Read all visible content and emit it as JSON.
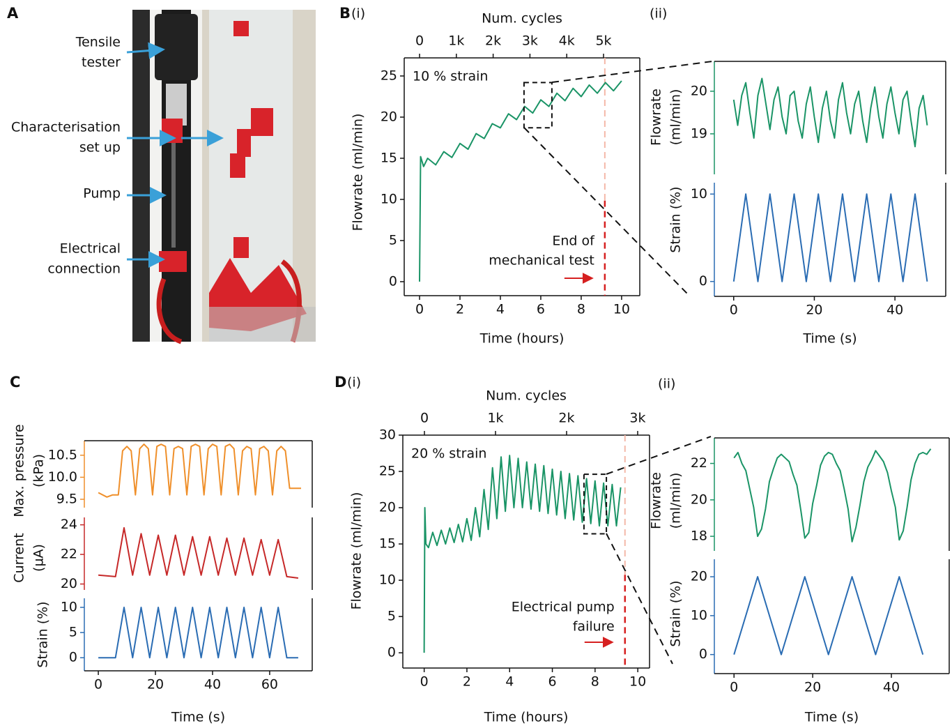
{
  "panel_labels": {
    "a": "A",
    "b": "B",
    "b_i": "(i)",
    "b_ii": "(ii)",
    "c": "C",
    "d": "D",
    "d_i": "(i)",
    "d_ii": "(ii)"
  },
  "photo_labels": [
    [
      "Tensile",
      "tester"
    ],
    [
      "Characterisation",
      "set up"
    ],
    [
      "Pump"
    ],
    [
      "Electrical",
      "connection"
    ]
  ],
  "chart_data": [
    {
      "type": "line",
      "xlabel": "Time (hours)",
      "ylabel": "Flowrate (ml/min)",
      "x2label": "Num. cycles",
      "color": "#1a9466",
      "xlim": [
        -0.76,
        10.9
      ],
      "ylim": [
        -1.7,
        27.2
      ],
      "xticks": [
        0,
        2,
        4,
        6,
        8,
        10
      ],
      "yticks": [
        0,
        5,
        10,
        15,
        20,
        25
      ],
      "x2lim": [
        -417,
        5985
      ],
      "x2ticks": [
        0,
        {
          "value": 1000,
          "label": "1k"
        },
        {
          "value": 2000,
          "label": "2k"
        },
        {
          "value": 3000,
          "label": "3k"
        },
        {
          "value": 4000,
          "label": "4k"
        },
        {
          "value": 5000,
          "label": "5k"
        }
      ],
      "annotations": {
        "strain": "10 % strain",
        "end": [
          "End of",
          "mechanical test"
        ]
      },
      "end_line_x": 9.17,
      "highlight": {
        "x": [
          5.17,
          6.55
        ],
        "y": [
          18.7,
          24.2
        ]
      },
      "x": [
        0,
        0.05,
        0.2,
        0.4,
        0.8,
        1.2,
        1.6,
        2.0,
        2.4,
        2.8,
        3.2,
        3.6,
        4.0,
        4.4,
        4.8,
        5.2,
        5.6,
        6.0,
        6.4,
        6.8,
        7.2,
        7.6,
        8.0,
        8.4,
        8.8,
        9.2,
        9.6,
        10.0
      ],
      "values": [
        0,
        15.2,
        14.0,
        15.0,
        14.2,
        15.8,
        15.1,
        16.8,
        16.1,
        18.0,
        17.4,
        19.2,
        18.7,
        20.4,
        19.7,
        21.3,
        20.5,
        22.1,
        21.3,
        22.9,
        22.0,
        23.5,
        22.5,
        23.9,
        22.9,
        24.2,
        23.2,
        24.4
      ]
    },
    {
      "type": "line",
      "ylabel": [
        "Flowrate",
        "(ml/min)"
      ],
      "color": "#1a9466",
      "xlim": [
        -4.8,
        52.6
      ],
      "ylim": [
        18.05,
        20.7
      ],
      "yticks": [
        19,
        20
      ],
      "x": [
        0,
        1,
        2,
        3,
        4,
        5,
        6,
        7,
        8,
        9,
        10,
        11,
        12,
        13,
        14,
        15,
        16,
        17,
        18,
        19,
        20,
        21,
        22,
        23,
        24,
        25,
        26,
        27,
        28,
        29,
        30,
        31,
        32,
        33,
        34,
        35,
        36,
        37,
        38,
        39,
        40,
        41,
        42,
        43,
        44,
        45,
        46,
        47,
        48
      ],
      "values": [
        19.8,
        19.2,
        19.9,
        20.2,
        19.5,
        18.9,
        19.9,
        20.3,
        19.7,
        19.1,
        19.8,
        20.1,
        19.4,
        19.0,
        19.9,
        20.0,
        19.3,
        18.9,
        19.7,
        20.1,
        19.4,
        18.8,
        19.6,
        20.0,
        19.3,
        18.9,
        19.8,
        20.2,
        19.5,
        19.0,
        19.7,
        20.0,
        19.3,
        18.8,
        19.6,
        20.1,
        19.4,
        18.9,
        19.7,
        20.1,
        19.5,
        19.0,
        19.8,
        20.0,
        19.3,
        18.7,
        19.6,
        19.9,
        19.2
      ]
    },
    {
      "type": "line",
      "xlabel": "Time (s)",
      "ylabel": "Strain (%)",
      "color": "#2a6cb3",
      "xlim": [
        -4.8,
        52.6
      ],
      "ylim": [
        -1.7,
        11.3
      ],
      "xticks": [
        0,
        20,
        40
      ],
      "yticks": [
        0,
        10
      ],
      "x": [
        0,
        3,
        6,
        9,
        12,
        15,
        18,
        21,
        24,
        27,
        30,
        33,
        36,
        39,
        42,
        45,
        48
      ],
      "values": [
        0,
        10,
        0,
        10,
        0,
        10,
        0,
        10,
        0,
        10,
        0,
        10,
        0,
        10,
        0,
        10,
        0
      ]
    },
    {
      "type": "line",
      "ylabel": [
        "Max. pressure",
        "(kPa)"
      ],
      "color": "#ef8f2a",
      "xlim": [
        -4.9,
        74.9
      ],
      "ylim": [
        9.31,
        10.83
      ],
      "yticks": [
        9.5,
        {
          "value": 10,
          "label": "10.0"
        },
        10.5
      ],
      "x": [
        0,
        3,
        5,
        7,
        8.5,
        10,
        11.5,
        13,
        14.5,
        16,
        17.5,
        19,
        20.5,
        22,
        23.5,
        25,
        26.5,
        28,
        29.5,
        31,
        32.5,
        34,
        35.5,
        37,
        38.5,
        40,
        41.5,
        43,
        44.5,
        46,
        47.5,
        49,
        50.5,
        52,
        53.5,
        55,
        56.5,
        58,
        59.5,
        61,
        62.5,
        64,
        65.5,
        67,
        71
      ],
      "values": [
        9.65,
        9.55,
        9.6,
        9.6,
        10.6,
        10.7,
        10.6,
        9.6,
        10.65,
        10.75,
        10.65,
        9.6,
        10.7,
        10.75,
        10.7,
        9.6,
        10.65,
        10.7,
        10.65,
        9.6,
        10.7,
        10.75,
        10.7,
        9.6,
        10.65,
        10.75,
        10.7,
        9.6,
        10.7,
        10.75,
        10.65,
        9.6,
        10.6,
        10.7,
        10.65,
        9.6,
        10.65,
        10.7,
        10.6,
        9.6,
        10.6,
        10.7,
        10.6,
        9.75,
        9.75
      ]
    },
    {
      "type": "line",
      "ylabel": [
        "Current",
        "(µA)"
      ],
      "color": "#c62828",
      "xlim": [
        -4.9,
        74.9
      ],
      "ylim": [
        19.6,
        24.5
      ],
      "yticks": [
        20,
        22,
        24
      ],
      "x": [
        0,
        6,
        9,
        12,
        15,
        18,
        21,
        24,
        27,
        30,
        33,
        36,
        39,
        42,
        45,
        48,
        51,
        54,
        57,
        60,
        63,
        66,
        70
      ],
      "values": [
        20.6,
        20.5,
        23.8,
        20.6,
        23.4,
        20.6,
        23.3,
        20.6,
        23.3,
        20.6,
        23.2,
        20.6,
        23.2,
        20.6,
        23.1,
        20.6,
        23.1,
        20.6,
        23.0,
        20.6,
        23.0,
        20.5,
        20.4
      ]
    },
    {
      "type": "line",
      "xlabel": "Time (s)",
      "ylabel": "Strain (%)",
      "color": "#2a6cb3",
      "xlim": [
        -4.9,
        74.9
      ],
      "ylim": [
        -2.6,
        11.8
      ],
      "xticks": [
        0,
        20,
        40,
        60
      ],
      "yticks": [
        0,
        5,
        10
      ],
      "x": [
        0,
        6,
        9,
        12,
        15,
        18,
        21,
        24,
        27,
        30,
        33,
        36,
        39,
        42,
        45,
        48,
        51,
        54,
        57,
        60,
        63,
        66,
        70
      ],
      "values": [
        0,
        0,
        10,
        0,
        10,
        0,
        10,
        0,
        10,
        0,
        10,
        0,
        10,
        0,
        10,
        0,
        10,
        0,
        10,
        0,
        10,
        0,
        0
      ]
    },
    {
      "type": "line",
      "xlabel": "Time (hours)",
      "ylabel": "Flowrate (ml/min)",
      "x2label": "Num. cycles",
      "color": "#1a9466",
      "xlim": [
        -1.0,
        10.55
      ],
      "ylim": [
        -2.1,
        30
      ],
      "xticks": [
        0,
        2,
        4,
        6,
        8,
        10
      ],
      "yticks": [
        0,
        5,
        10,
        15,
        20,
        25,
        30
      ],
      "x2lim": [
        -304,
        3167
      ],
      "x2ticks": [
        0,
        {
          "value": 1000,
          "label": "1k"
        },
        {
          "value": 2000,
          "label": "2k"
        },
        {
          "value": 3000,
          "label": "3k"
        }
      ],
      "annotations": {
        "strain": "20 % strain",
        "end": [
          "Electrical pump",
          "failure"
        ]
      },
      "end_line_x": 9.4,
      "highlight": {
        "x": [
          7.48,
          8.53
        ],
        "y": [
          16.4,
          24.6
        ]
      },
      "x": [
        0,
        0.03,
        0.08,
        0.2,
        0.4,
        0.6,
        0.8,
        1.0,
        1.2,
        1.4,
        1.6,
        1.8,
        2.0,
        2.2,
        2.4,
        2.6,
        2.8,
        3.0,
        3.2,
        3.4,
        3.6,
        3.8,
        4.0,
        4.2,
        4.4,
        4.6,
        4.8,
        5.0,
        5.2,
        5.4,
        5.6,
        5.8,
        6.0,
        6.2,
        6.4,
        6.6,
        6.8,
        7.0,
        7.2,
        7.4,
        7.6,
        7.8,
        8.0,
        8.2,
        8.4,
        8.6,
        8.8,
        9.0,
        9.2
      ],
      "values": [
        0,
        20,
        15,
        14.5,
        16.6,
        14.8,
        16.9,
        15.0,
        17.2,
        15.2,
        17.7,
        15.3,
        18.5,
        15.5,
        20.0,
        16.0,
        22.5,
        17.0,
        25.5,
        18.5,
        27.0,
        19.5,
        27.2,
        20.0,
        26.8,
        20.0,
        26.3,
        19.8,
        26.0,
        19.5,
        25.8,
        19.2,
        25.3,
        19.0,
        25.0,
        18.5,
        24.7,
        18.3,
        24.4,
        18.0,
        24.0,
        17.8,
        23.7,
        17.5,
        23.4,
        17.5,
        23.2,
        17.5,
        22.8
      ]
    },
    {
      "type": "line",
      "ylabel": [
        "Flowrate",
        "(ml/min)"
      ],
      "color": "#1a9466",
      "xlim": [
        -5,
        54.7
      ],
      "ylim": [
        17.2,
        23.4
      ],
      "yticks": [
        18,
        20,
        22
      ],
      "x": [
        0,
        1,
        2,
        3,
        4,
        5,
        6,
        7,
        8,
        9,
        10,
        11,
        12,
        13,
        14,
        15,
        16,
        17,
        18,
        19,
        20,
        21,
        22,
        23,
        24,
        25,
        26,
        27,
        28,
        29,
        30,
        31,
        32,
        33,
        34,
        35,
        36,
        37,
        38,
        39,
        40,
        41,
        42,
        43,
        44,
        45,
        46,
        47,
        48,
        49,
        50
      ],
      "values": [
        22.3,
        22.6,
        22.0,
        21.6,
        20.6,
        19.6,
        18.0,
        18.4,
        19.5,
        21.0,
        21.7,
        22.3,
        22.5,
        22.3,
        22.1,
        21.4,
        20.8,
        19.4,
        17.9,
        18.2,
        19.8,
        20.8,
        21.9,
        22.4,
        22.6,
        22.5,
        22.0,
        21.6,
        20.6,
        19.5,
        17.7,
        18.5,
        19.7,
        21.0,
        21.8,
        22.2,
        22.7,
        22.4,
        22.1,
        21.5,
        20.5,
        19.6,
        17.8,
        18.3,
        19.6,
        21.1,
        22.0,
        22.5,
        22.6,
        22.5,
        22.8
      ]
    },
    {
      "type": "line",
      "xlabel": "Time (s)",
      "ylabel": "Strain (%)",
      "color": "#2a6cb3",
      "xlim": [
        -5,
        54.7
      ],
      "ylim": [
        -4.9,
        24.5
      ],
      "xticks": [
        0,
        20,
        40
      ],
      "yticks": [
        0,
        10,
        20
      ],
      "x": [
        0,
        6,
        12,
        18,
        24,
        30,
        36,
        42,
        48
      ],
      "values": [
        0,
        20,
        0,
        20,
        0,
        20,
        0,
        20,
        0
      ]
    }
  ]
}
